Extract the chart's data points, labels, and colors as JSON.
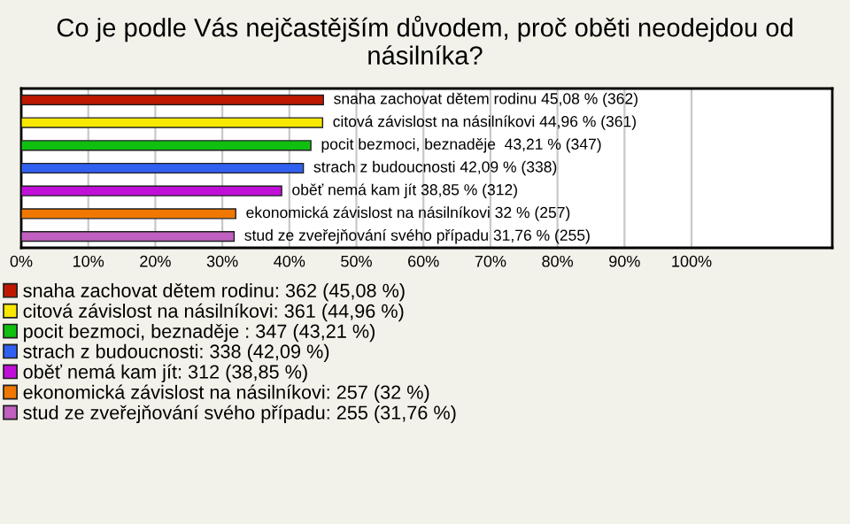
{
  "chart_data": {
    "type": "bar",
    "orientation": "horizontal",
    "title": "Co je podle Vás nejčastějším důvodem, proč oběti neodejdou od násilníka?",
    "categories": [
      null,
      null,
      null,
      null,
      null,
      null,
      null
    ],
    "series": [
      {
        "name": "snaha zachovat dětem rodinu: 362 (45,08 %)",
        "color": "#c01800",
        "values": [
          45.08,
          null,
          null,
          null,
          null,
          null,
          null
        ],
        "value_labels": [
          "snaha zachovat dětem rodinu 45,08 % (362)",
          null,
          null,
          null,
          null,
          null,
          null
        ]
      },
      {
        "name": "citová závislost na násilníkovi: 361 (44,96 %)",
        "color": "#f8e800",
        "values": [
          null,
          44.96,
          null,
          null,
          null,
          null,
          null
        ],
        "value_labels": [
          null,
          "citová závislost na násilníkovi 44,96 % (361)",
          null,
          null,
          null,
          null,
          null
        ]
      },
      {
        "name": "pocit bezmoci, beznaděje : 347 (43,21 %)",
        "color": "#10c010",
        "values": [
          null,
          null,
          43.21,
          null,
          null,
          null,
          null
        ],
        "value_labels": [
          null,
          null,
          "pocit bezmoci, beznaděje  43,21 % (347)",
          null,
          null,
          null,
          null
        ]
      },
      {
        "name": "strach z budoucnosti: 338 (42,09 %)",
        "color": "#3060f0",
        "values": [
          null,
          null,
          null,
          42.09,
          null,
          null,
          null
        ],
        "value_labels": [
          null,
          null,
          null,
          "strach z budoucnosti 42,09 % (338)",
          null,
          null,
          null
        ]
      },
      {
        "name": "oběť nemá kam jít: 312 (38,85 %)",
        "color": "#c010d8",
        "values": [
          null,
          null,
          null,
          null,
          38.85,
          null,
          null
        ],
        "value_labels": [
          null,
          null,
          null,
          null,
          "oběť nemá kam jít 38,85 % (312)",
          null,
          null
        ]
      },
      {
        "name": "ekonomická závislost na násilníkovi: 257 (32 %)",
        "color": "#f07800",
        "values": [
          null,
          null,
          null,
          null,
          null,
          32,
          null
        ],
        "value_labels": [
          null,
          null,
          null,
          null,
          null,
          "ekonomická závislost na násilníkovi 32 % (257)",
          null
        ]
      },
      {
        "name": "stud ze zveřejňování svého případu: 255 (31,76 %)",
        "color": "#c060c0",
        "values": [
          null,
          null,
          null,
          null,
          null,
          null,
          31.76
        ],
        "value_labels": [
          null,
          null,
          null,
          null,
          null,
          null,
          "stud ze zveřejňování svého případu 31,76 % (255)"
        ]
      }
    ],
    "xlim": [
      0,
      121
    ],
    "xticks": [
      {
        "value": 0,
        "label": "0%"
      },
      {
        "value": 10,
        "label": "10%"
      },
      {
        "value": 20,
        "label": "20%"
      },
      {
        "value": 30,
        "label": "30%"
      },
      {
        "value": 40,
        "label": "40%"
      },
      {
        "value": 50,
        "label": "50%"
      },
      {
        "value": 60,
        "label": "60%"
      },
      {
        "value": 70,
        "label": "70%"
      },
      {
        "value": 80,
        "label": "80%"
      },
      {
        "value": 90,
        "label": "90%"
      },
      {
        "value": 100,
        "label": "100%"
      }
    ],
    "grid": "x",
    "legend": "bottom",
    "tick_labels": "x"
  }
}
